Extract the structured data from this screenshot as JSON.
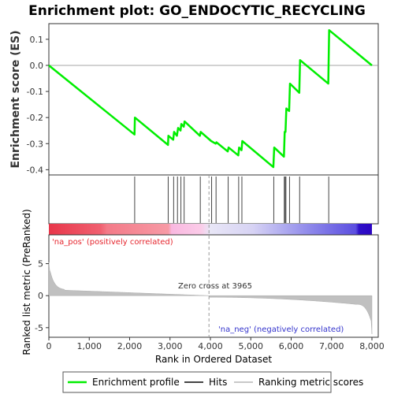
{
  "chart_data": {
    "type": "line",
    "title": "Enrichment plot: GO_ENDOCYTIC_RECYCLING",
    "top_panel": {
      "ylabel": "Enrichment score (ES)",
      "ylim": [
        -0.42,
        0.16
      ],
      "yticks": [
        -0.4,
        -0.3,
        -0.2,
        -0.1,
        0.0,
        0.1
      ],
      "ytick_labels": [
        "-0.4",
        "-0.3",
        "-0.2",
        "-0.1",
        "0.0",
        "0.1"
      ],
      "series": [
        {
          "color": "#00ee00",
          "points": [
            [
              0,
              0.0
            ],
            [
              2120,
              -0.265
            ],
            [
              2130,
              -0.2
            ],
            [
              2950,
              -0.305
            ],
            [
              2960,
              -0.27
            ],
            [
              3080,
              -0.285
            ],
            [
              3100,
              -0.255
            ],
            [
              3170,
              -0.27
            ],
            [
              3200,
              -0.24
            ],
            [
              3260,
              -0.25
            ],
            [
              3280,
              -0.225
            ],
            [
              3340,
              -0.235
            ],
            [
              3360,
              -0.215
            ],
            [
              3740,
              -0.27
            ],
            [
              3760,
              -0.255
            ],
            [
              4020,
              -0.29
            ],
            [
              4130,
              -0.3
            ],
            [
              4150,
              -0.295
            ],
            [
              4430,
              -0.33
            ],
            [
              4450,
              -0.315
            ],
            [
              4690,
              -0.345
            ],
            [
              4710,
              -0.315
            ],
            [
              4770,
              -0.325
            ],
            [
              4790,
              -0.29
            ],
            [
              5560,
              -0.39
            ],
            [
              5580,
              -0.315
            ],
            [
              5820,
              -0.35
            ],
            [
              5840,
              -0.255
            ],
            [
              5860,
              -0.255
            ],
            [
              5880,
              -0.165
            ],
            [
              5950,
              -0.175
            ],
            [
              5970,
              -0.07
            ],
            [
              6200,
              -0.105
            ],
            [
              6220,
              0.02
            ],
            [
              6920,
              -0.07
            ],
            [
              6940,
              0.135
            ],
            [
              8000,
              0.0
            ]
          ]
        }
      ]
    },
    "hits": [
      2125,
      2955,
      3090,
      3185,
      3270,
      3350,
      3750,
      4030,
      4140,
      4440,
      4700,
      4780,
      5570,
      5830,
      5850,
      5870,
      5960,
      6210,
      6930
    ],
    "ranked_panel": {
      "ylabel": "Ranked list metric (PreRanked)",
      "ylim": [
        -6.5,
        9.5
      ],
      "yticks": [
        -5,
        0,
        5
      ],
      "ytick_labels": [
        "-5",
        "0",
        "5"
      ],
      "pos_label": "'na_pos' (positively correlated)",
      "neg_label": "'na_neg' (negatively correlated)",
      "zero_cross_text": "Zero cross at 3965",
      "zero_cross": 3965
    },
    "xlabel": "Rank in Ordered Dataset",
    "xlim": [
      0,
      8000
    ],
    "xticks": [
      0,
      1000,
      2000,
      3000,
      4000,
      5000,
      6000,
      7000,
      8000
    ],
    "xtick_labels": [
      "0",
      "1,000",
      "2,000",
      "3,000",
      "4,000",
      "5,000",
      "6,000",
      "7,000",
      "8,000"
    ],
    "legend": [
      {
        "label": "Enrichment profile",
        "color": "#00ee00"
      },
      {
        "label": "Hits",
        "color": "#444444"
      },
      {
        "label": "Ranking metric scores",
        "color": "#c8c8c8"
      }
    ]
  }
}
